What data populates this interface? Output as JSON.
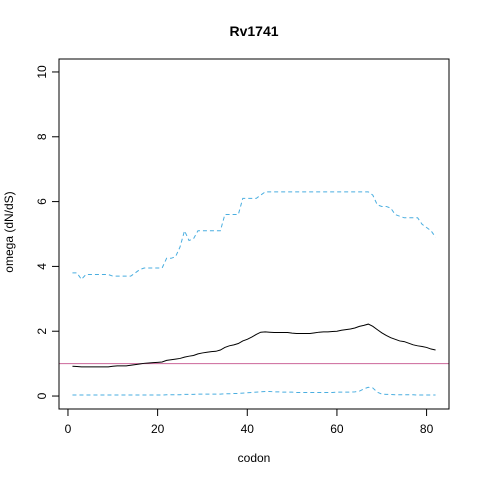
{
  "chart_data": {
    "type": "line",
    "title": "Rv1741",
    "xlabel": "codon",
    "ylabel": "omega (dN/dS)",
    "xlim": [
      -2,
      85
    ],
    "ylim": [
      -0.4,
      10.4
    ],
    "x_ticks": [
      0,
      20,
      40,
      60,
      80
    ],
    "y_ticks": [
      0,
      2,
      4,
      6,
      8,
      10
    ],
    "grid": false,
    "legend": "none",
    "reference_line": {
      "y": 1.0,
      "color": "#cc6699"
    },
    "series": [
      {
        "role": "upper",
        "color": "#4aaee0",
        "style": "dashed",
        "x": [
          1,
          2,
          3,
          4,
          5,
          6,
          7,
          8,
          9,
          10,
          11,
          12,
          13,
          14,
          15,
          16,
          17,
          18,
          19,
          20,
          21,
          22,
          23,
          24,
          25,
          26,
          27,
          28,
          29,
          30,
          31,
          32,
          33,
          34,
          35,
          36,
          37,
          38,
          39,
          40,
          41,
          42,
          43,
          44,
          45,
          46,
          47,
          48,
          49,
          50,
          51,
          52,
          53,
          54,
          55,
          56,
          57,
          58,
          59,
          60,
          61,
          62,
          63,
          64,
          65,
          66,
          67,
          68,
          69,
          70,
          71,
          72,
          73,
          74,
          75,
          76,
          77,
          78,
          79,
          80,
          81,
          82
        ],
        "y": [
          3.8,
          3.8,
          3.6,
          3.75,
          3.75,
          3.75,
          3.75,
          3.75,
          3.75,
          3.7,
          3.7,
          3.7,
          3.7,
          3.7,
          3.8,
          3.9,
          3.95,
          3.95,
          3.95,
          3.95,
          3.95,
          4.25,
          4.25,
          4.3,
          4.6,
          5.1,
          4.8,
          4.85,
          5.1,
          5.1,
          5.1,
          5.1,
          5.1,
          5.1,
          5.6,
          5.6,
          5.6,
          5.6,
          6.1,
          6.1,
          6.1,
          6.1,
          6.2,
          6.3,
          6.3,
          6.3,
          6.3,
          6.3,
          6.3,
          6.3,
          6.3,
          6.3,
          6.3,
          6.3,
          6.3,
          6.3,
          6.3,
          6.3,
          6.3,
          6.3,
          6.3,
          6.3,
          6.3,
          6.3,
          6.3,
          6.3,
          6.3,
          6.2,
          5.9,
          5.85,
          5.85,
          5.8,
          5.6,
          5.55,
          5.5,
          5.5,
          5.5,
          5.5,
          5.3,
          5.2,
          5.1,
          4.9
        ]
      },
      {
        "role": "mean",
        "color": "#000000",
        "style": "solid",
        "x": [
          1,
          2,
          3,
          4,
          5,
          6,
          7,
          8,
          9,
          10,
          11,
          12,
          13,
          14,
          15,
          16,
          17,
          18,
          19,
          20,
          21,
          22,
          23,
          24,
          25,
          26,
          27,
          28,
          29,
          30,
          31,
          32,
          33,
          34,
          35,
          36,
          37,
          38,
          39,
          40,
          41,
          42,
          43,
          44,
          45,
          46,
          47,
          48,
          49,
          50,
          51,
          52,
          53,
          54,
          55,
          56,
          57,
          58,
          59,
          60,
          61,
          62,
          63,
          64,
          65,
          66,
          67,
          68,
          69,
          70,
          71,
          72,
          73,
          74,
          75,
          76,
          77,
          78,
          79,
          80,
          81,
          82
        ],
        "y": [
          0.92,
          0.91,
          0.9,
          0.9,
          0.9,
          0.9,
          0.9,
          0.9,
          0.9,
          0.92,
          0.93,
          0.93,
          0.93,
          0.95,
          0.97,
          0.99,
          1.01,
          1.02,
          1.03,
          1.04,
          1.05,
          1.1,
          1.12,
          1.14,
          1.16,
          1.2,
          1.23,
          1.25,
          1.3,
          1.33,
          1.35,
          1.37,
          1.38,
          1.42,
          1.5,
          1.55,
          1.58,
          1.62,
          1.7,
          1.75,
          1.82,
          1.9,
          1.97,
          1.98,
          1.97,
          1.96,
          1.96,
          1.96,
          1.96,
          1.94,
          1.93,
          1.93,
          1.93,
          1.93,
          1.95,
          1.97,
          1.98,
          1.98,
          1.99,
          2.0,
          2.03,
          2.05,
          2.07,
          2.1,
          2.15,
          2.18,
          2.22,
          2.15,
          2.05,
          1.95,
          1.87,
          1.8,
          1.75,
          1.7,
          1.68,
          1.63,
          1.58,
          1.55,
          1.53,
          1.5,
          1.45,
          1.42
        ]
      },
      {
        "role": "lower",
        "color": "#4aaee0",
        "style": "dashed",
        "x": [
          1,
          2,
          3,
          4,
          5,
          6,
          7,
          8,
          9,
          10,
          11,
          12,
          13,
          14,
          15,
          16,
          17,
          18,
          19,
          20,
          21,
          22,
          23,
          24,
          25,
          26,
          27,
          28,
          29,
          30,
          31,
          32,
          33,
          34,
          35,
          36,
          37,
          38,
          39,
          40,
          41,
          42,
          43,
          44,
          45,
          46,
          47,
          48,
          49,
          50,
          51,
          52,
          53,
          54,
          55,
          56,
          57,
          58,
          59,
          60,
          61,
          62,
          63,
          64,
          65,
          66,
          67,
          68,
          69,
          70,
          71,
          72,
          73,
          74,
          75,
          76,
          77,
          78,
          79,
          80,
          81,
          82
        ],
        "y": [
          0.03,
          0.03,
          0.03,
          0.03,
          0.03,
          0.03,
          0.03,
          0.03,
          0.03,
          0.03,
          0.03,
          0.03,
          0.03,
          0.03,
          0.03,
          0.03,
          0.03,
          0.03,
          0.03,
          0.03,
          0.03,
          0.04,
          0.04,
          0.04,
          0.04,
          0.05,
          0.05,
          0.05,
          0.06,
          0.06,
          0.06,
          0.06,
          0.06,
          0.06,
          0.07,
          0.07,
          0.08,
          0.08,
          0.09,
          0.1,
          0.11,
          0.12,
          0.13,
          0.14,
          0.14,
          0.13,
          0.13,
          0.12,
          0.12,
          0.12,
          0.11,
          0.11,
          0.11,
          0.11,
          0.11,
          0.11,
          0.11,
          0.11,
          0.11,
          0.12,
          0.12,
          0.12,
          0.12,
          0.13,
          0.15,
          0.22,
          0.27,
          0.25,
          0.12,
          0.06,
          0.05,
          0.05,
          0.04,
          0.04,
          0.04,
          0.04,
          0.04,
          0.03,
          0.03,
          0.03,
          0.03,
          0.03
        ]
      }
    ]
  }
}
